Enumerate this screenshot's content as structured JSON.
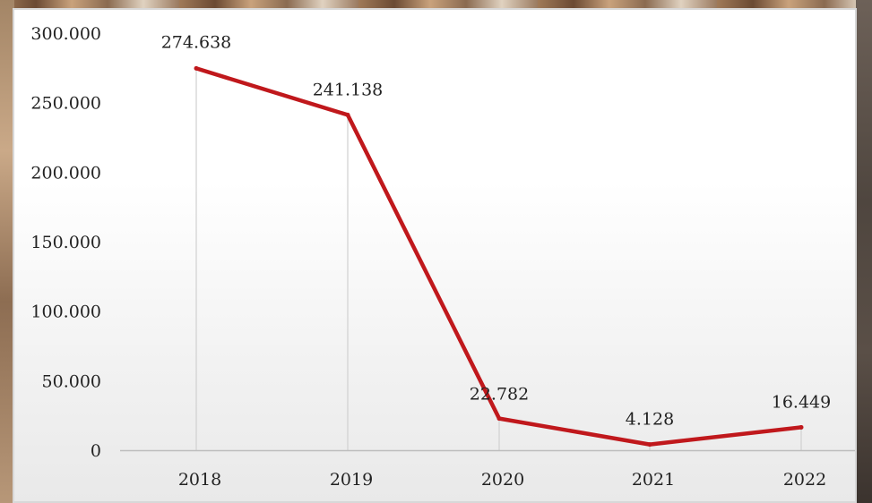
{
  "chart_data": {
    "type": "line",
    "categories": [
      "2018",
      "2019",
      "2020",
      "2021",
      "2022"
    ],
    "values": [
      274638,
      241138,
      22782,
      4128,
      16449
    ],
    "data_labels": [
      "274.638",
      "241.138",
      "22.782",
      "4.128",
      "16.449"
    ],
    "y_ticks": [
      "0",
      "50.000",
      "100.000",
      "150.000",
      "200.000",
      "250.000",
      "300.000"
    ],
    "ylim": [
      0,
      300000
    ],
    "grid": "vertical",
    "line_color": "#c0181c",
    "grid_color": "#d0d0d0",
    "baseline_color": "#bdbdbd",
    "title": "",
    "xlabel": "",
    "ylabel": ""
  }
}
